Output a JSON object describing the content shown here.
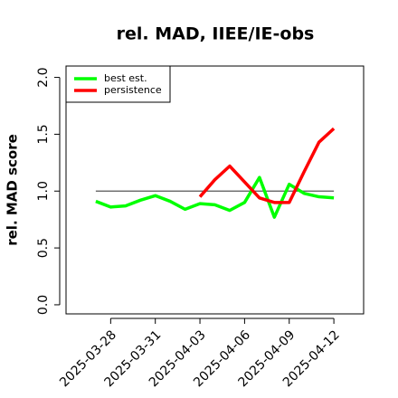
{
  "chart_data": {
    "type": "line",
    "title": "rel. MAD, IIEE/IE-obs",
    "y_label": "rel. MAD score",
    "x": [
      "2025-03-27",
      "2025-03-28",
      "2025-03-29",
      "2025-03-30",
      "2025-03-31",
      "2025-04-01",
      "2025-04-02",
      "2025-04-03",
      "2025-04-04",
      "2025-04-05",
      "2025-04-06",
      "2025-04-07",
      "2025-04-08",
      "2025-04-09",
      "2025-04-10",
      "2025-04-11",
      "2025-04-12"
    ],
    "series": [
      {
        "name": "best est.",
        "color": "#00ff00",
        "values": [
          0.91,
          0.86,
          0.87,
          0.92,
          0.96,
          0.91,
          0.84,
          0.89,
          0.88,
          0.83,
          0.9,
          1.12,
          0.77,
          1.06,
          0.98,
          0.95,
          0.94
        ]
      },
      {
        "name": "persistence",
        "color": "#ff0000",
        "values": [
          null,
          null,
          null,
          null,
          null,
          null,
          null,
          0.95,
          1.1,
          1.22,
          1.08,
          0.94,
          0.9,
          0.9,
          1.17,
          1.43,
          1.55
        ]
      }
    ],
    "reference_line": 1,
    "xlim": [
      "2025-03-25",
      "2025-04-14"
    ],
    "xticks": [
      "2025-03-28",
      "2025-03-31",
      "2025-04-03",
      "2025-04-06",
      "2025-04-09",
      "2025-04-12"
    ],
    "ylim": [
      -0.08,
      2.1
    ],
    "yticks": [
      {
        "value": 0,
        "label": "0.0"
      },
      0.5,
      {
        "value": 1,
        "label": "1.0"
      },
      1.5,
      {
        "value": 2,
        "label": "2.0"
      }
    ],
    "legend": "top-left"
  }
}
